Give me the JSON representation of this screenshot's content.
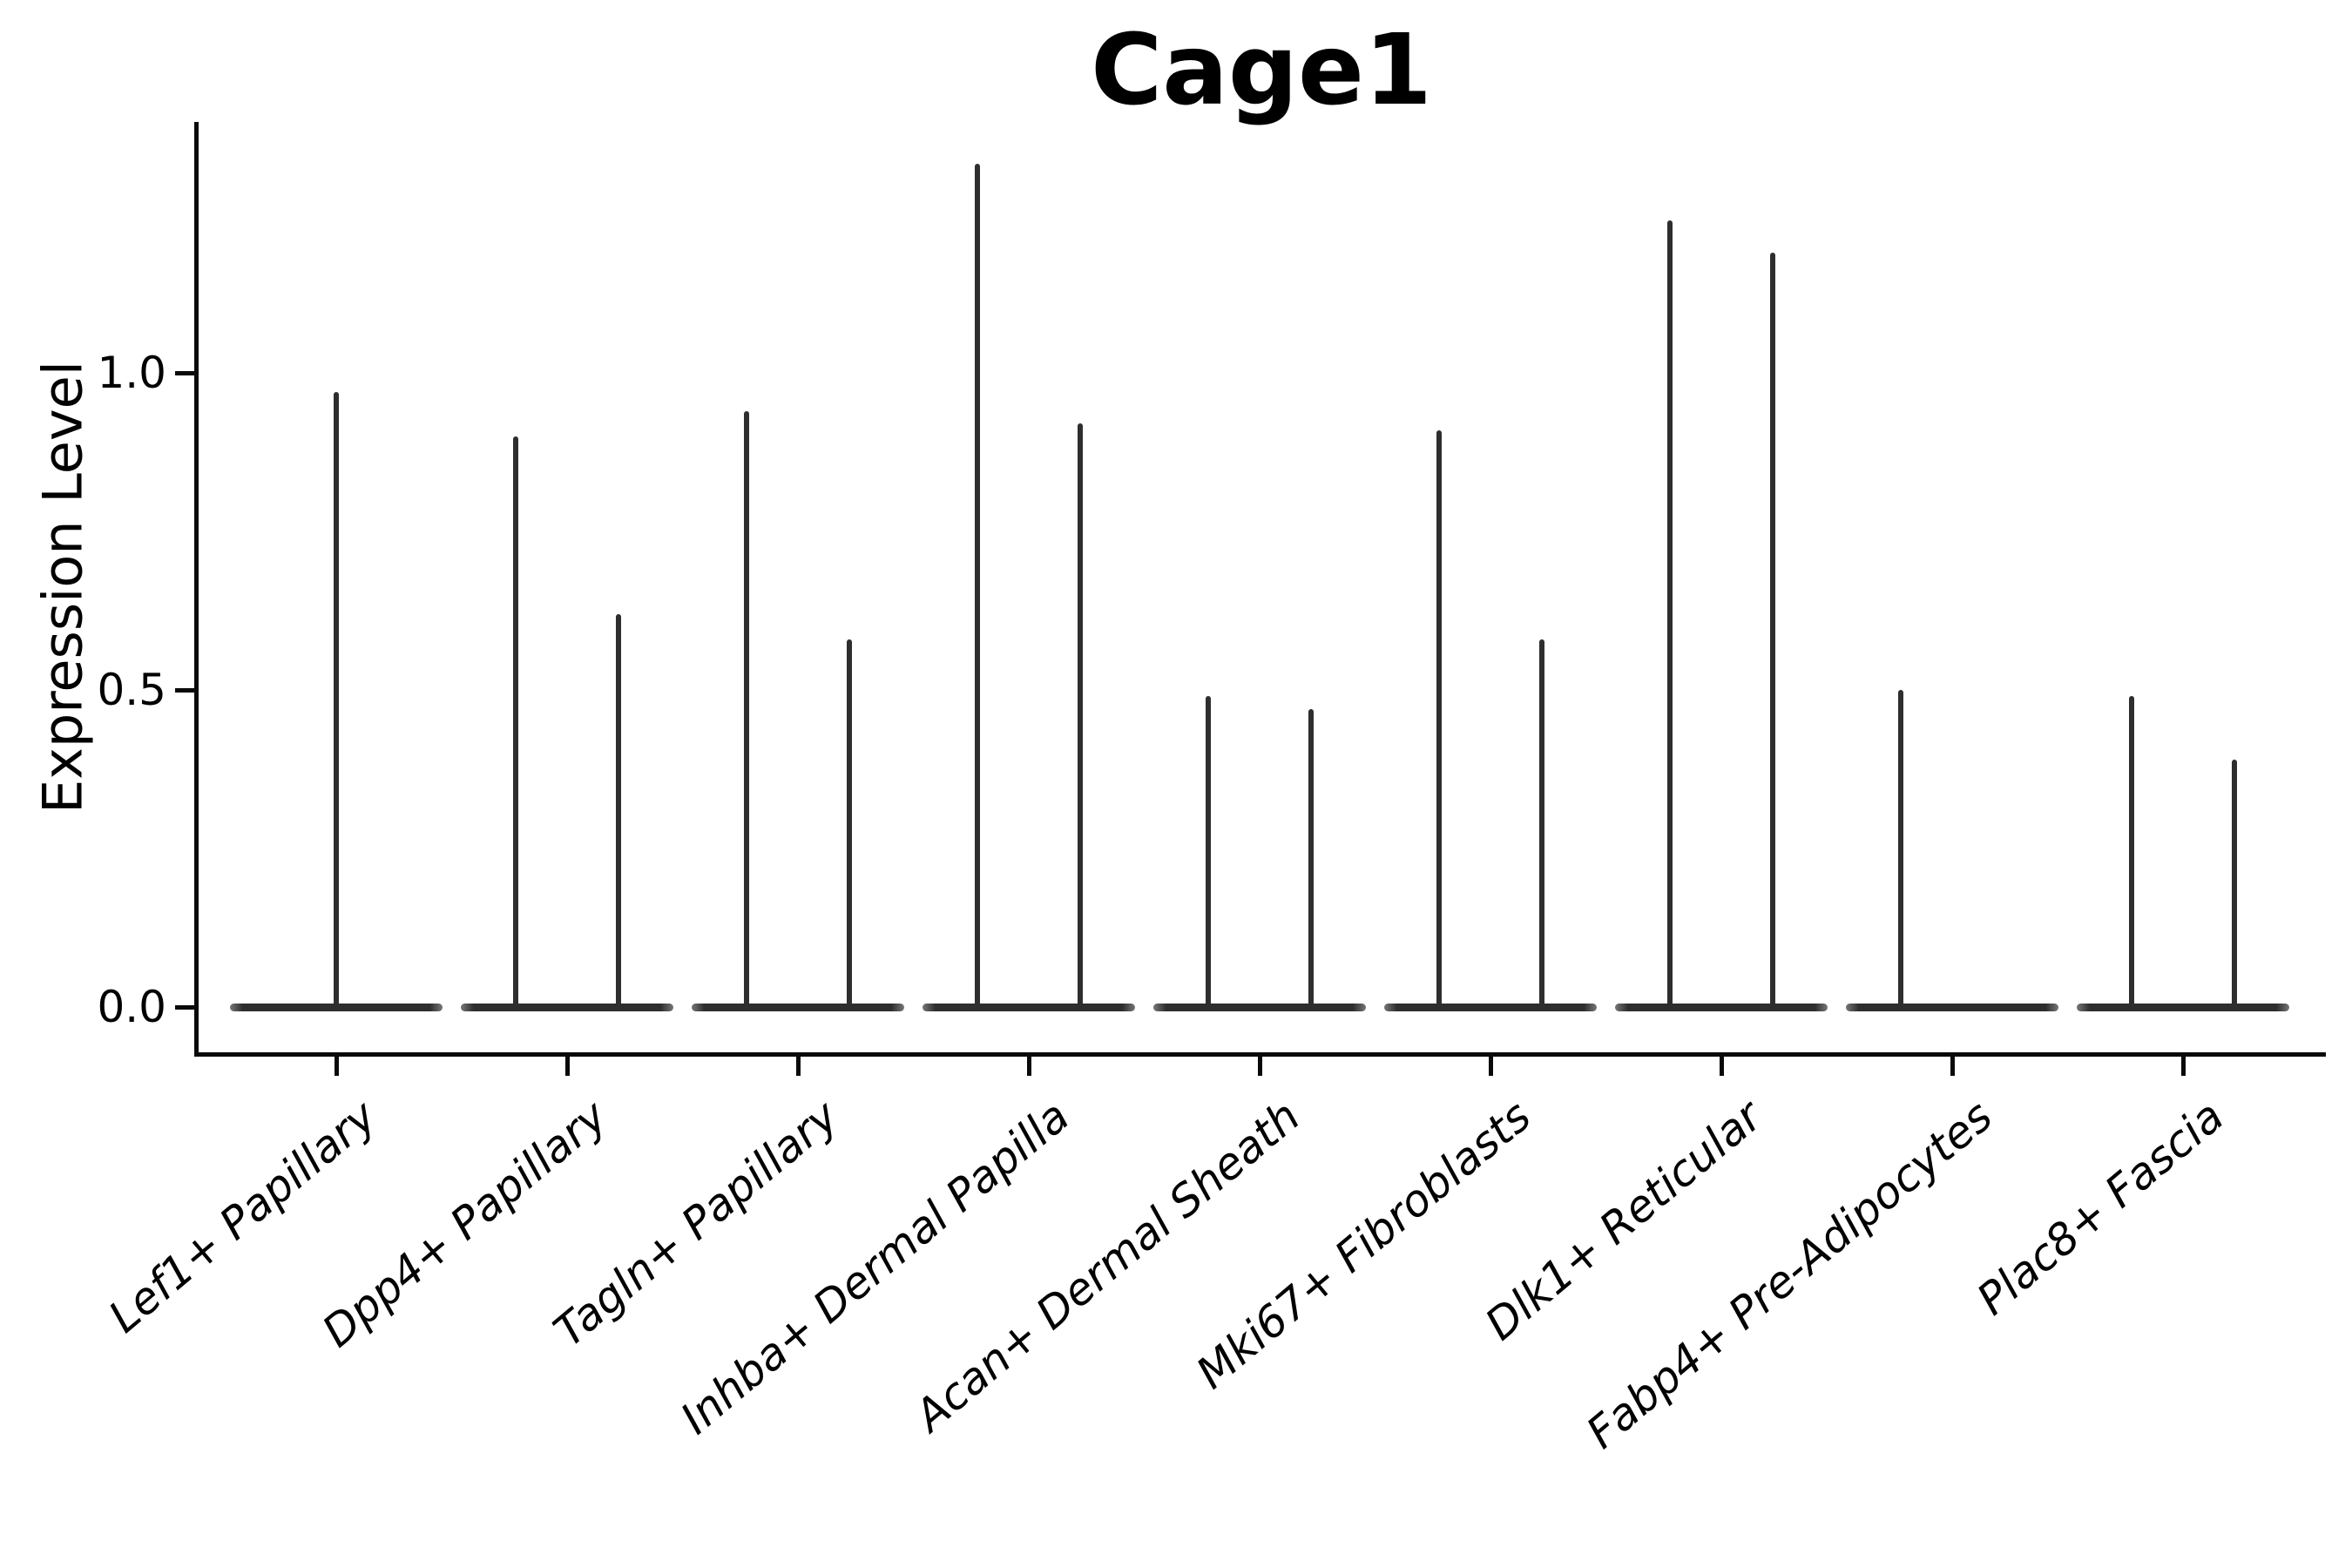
{
  "chart_data": {
    "type": "violin",
    "title": "Cage1",
    "ylabel": "Expression Level",
    "xlabel": "",
    "grid": false,
    "legend": null,
    "ylim": [
      -0.07,
      1.4
    ],
    "yticks": [
      {
        "value": 0.0,
        "label": "0.0"
      },
      {
        "value": 0.5,
        "label": "0.5"
      },
      {
        "value": 1.0,
        "label": "1.0"
      }
    ],
    "categories": [
      "Lef1+ Papillary",
      "Dpp4+ Papillary",
      "Tagln+ Papillary",
      "Inhba+ Dermal Papilla",
      "Acan+ Dermal Sheath",
      "Mki67+ Fibroblasts",
      "Dlk1+ Reticular",
      "Fabp4+ Pre-Adipocytes",
      "Plac8+ Fascia"
    ],
    "violins": [
      {
        "category": "Lef1+ Papillary",
        "spikes": [
          {
            "offset": 0,
            "max": 0.97
          }
        ]
      },
      {
        "category": "Dpp4+ Papillary",
        "spikes": [
          {
            "offset": -0.223,
            "max": 0.9
          },
          {
            "offset": 0.223,
            "max": 0.62
          }
        ]
      },
      {
        "category": "Tagln+ Papillary",
        "spikes": [
          {
            "offset": -0.223,
            "max": 0.94
          },
          {
            "offset": 0.223,
            "max": 0.58
          }
        ]
      },
      {
        "category": "Inhba+ Dermal Papilla",
        "spikes": [
          {
            "offset": -0.223,
            "max": 1.33
          },
          {
            "offset": 0.223,
            "max": 0.92
          }
        ]
      },
      {
        "category": "Acan+ Dermal Sheath",
        "spikes": [
          {
            "offset": -0.223,
            "max": 0.49
          },
          {
            "offset": 0.223,
            "max": 0.47
          }
        ]
      },
      {
        "category": "Mki67+ Fibroblasts",
        "spikes": [
          {
            "offset": -0.223,
            "max": 0.91
          },
          {
            "offset": 0.223,
            "max": 0.58
          }
        ]
      },
      {
        "category": "Dlk1+ Reticular",
        "spikes": [
          {
            "offset": -0.223,
            "max": 1.24
          },
          {
            "offset": 0.223,
            "max": 1.19
          }
        ]
      },
      {
        "category": "Fabp4+ Pre-Adipocytes",
        "spikes": [
          {
            "offset": -0.223,
            "max": 0.5
          }
        ]
      },
      {
        "category": "Plac8+ Fascia",
        "spikes": [
          {
            "offset": -0.223,
            "max": 0.49
          },
          {
            "offset": 0.223,
            "max": 0.39
          }
        ]
      }
    ],
    "colors": {
      "violin": "#2e2e2e",
      "spine": "#0a0a0a",
      "text": "#000000",
      "background": "#ffffff"
    }
  }
}
